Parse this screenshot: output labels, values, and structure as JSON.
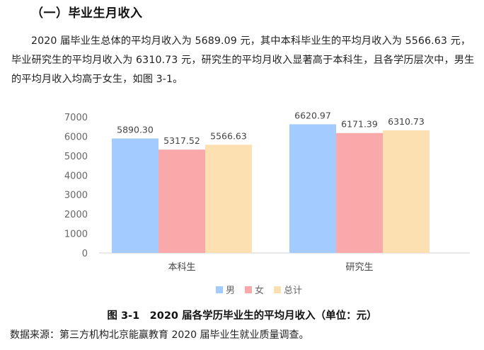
{
  "section": {
    "heading": "（一）毕业生月收入",
    "paragraph": "2020 届毕业生总体的平均月收入为 5689.09 元，其中本科毕业生的平均月收入为 5566.63 元，毕业研究生的平均月收入为 6310.73 元，研究生的平均月收入显著高于本科生，且各学历层次中，男生的平均月收入均高于女生，如图 3-1。"
  },
  "figure": {
    "caption": "图 3-1　2020 届各学历毕业生的平均月收入（单位：元）",
    "source": "数据来源：第三方机构北京能赢教育 2020 届毕业生就业质量调查。"
  },
  "chart_data": {
    "type": "bar",
    "categories": [
      "本科生",
      "研究生"
    ],
    "series": [
      {
        "name": "男",
        "values": [
          5890.3,
          6620.97
        ],
        "labels": [
          "5890.30",
          "6620.97"
        ],
        "color": "#a3cbff"
      },
      {
        "name": "女",
        "values": [
          5317.52,
          6171.39
        ],
        "labels": [
          "5317.52",
          "6171.39"
        ],
        "color": "#f9a9aa"
      },
      {
        "name": "总计",
        "values": [
          5566.63,
          6310.73
        ],
        "labels": [
          "5566.63",
          "6310.73"
        ],
        "color": "#fde0b1"
      }
    ],
    "yticks": [
      "0",
      "1000",
      "2000",
      "3000",
      "4000",
      "5000",
      "6000",
      "7000"
    ],
    "ylim": [
      0,
      7000
    ],
    "grid": false,
    "legend_position": "bottom"
  }
}
